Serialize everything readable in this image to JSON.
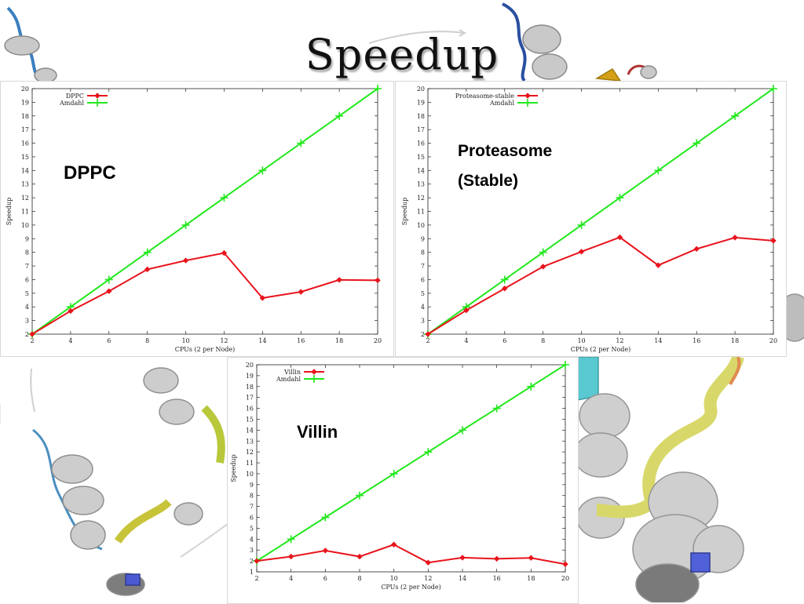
{
  "slide": {
    "title": "Speedup"
  },
  "chart_data": [
    {
      "id": "dppc",
      "type": "line",
      "overlay_label": [
        "DPPC"
      ],
      "xlabel": "CPUs (2 per Node)",
      "ylabel": "Speedup",
      "xlim": [
        2,
        20
      ],
      "ylim": [
        2,
        20
      ],
      "x_ticks": [
        2,
        4,
        6,
        8,
        10,
        12,
        14,
        16,
        18,
        20
      ],
      "y_ticks": [
        2,
        3,
        4,
        5,
        6,
        7,
        8,
        9,
        10,
        11,
        12,
        13,
        14,
        15,
        16,
        17,
        18,
        19,
        20
      ],
      "legend_position": "top-left",
      "grid": false,
      "x": [
        2,
        4,
        6,
        8,
        10,
        12,
        14,
        16,
        18,
        20
      ],
      "series": [
        {
          "name": "DPPC",
          "color": "#e8141c",
          "marker": "diamond",
          "values": [
            2.0,
            3.7,
            5.15,
            6.75,
            7.4,
            7.95,
            4.65,
            5.1,
            5.98,
            5.95
          ]
        },
        {
          "name": "Amdahl",
          "color": "#22e81c",
          "marker": "plus",
          "values": [
            2,
            4,
            6,
            8,
            10,
            12,
            14,
            16,
            18,
            20
          ]
        }
      ]
    },
    {
      "id": "proteasome",
      "type": "line",
      "overlay_label": [
        "Proteasome",
        "(Stable)"
      ],
      "xlabel": "CPUs (2 per Node)",
      "ylabel": "Speedup",
      "xlim": [
        2,
        20
      ],
      "ylim": [
        2,
        20
      ],
      "x_ticks": [
        2,
        4,
        6,
        8,
        10,
        12,
        14,
        16,
        18,
        20
      ],
      "y_ticks": [
        2,
        3,
        4,
        5,
        6,
        7,
        8,
        9,
        10,
        11,
        12,
        13,
        14,
        15,
        16,
        17,
        18,
        19,
        20
      ],
      "legend_position": "top-left",
      "grid": false,
      "x": [
        2,
        4,
        6,
        8,
        10,
        12,
        14,
        16,
        18,
        20
      ],
      "series": [
        {
          "name": "Proteasome-stable",
          "color": "#e8141c",
          "marker": "diamond",
          "values": [
            2.0,
            3.75,
            5.35,
            6.95,
            8.05,
            9.1,
            7.05,
            8.25,
            9.08,
            8.85
          ]
        },
        {
          "name": "Amdahl",
          "color": "#22e81c",
          "marker": "plus",
          "values": [
            2,
            4,
            6,
            8,
            10,
            12,
            14,
            16,
            18,
            20
          ]
        }
      ]
    },
    {
      "id": "villin",
      "type": "line",
      "overlay_label": [
        "Villin"
      ],
      "xlabel": "CPUs (2 per Node)",
      "ylabel": "Speedup",
      "xlim": [
        2,
        20
      ],
      "ylim": [
        1,
        20
      ],
      "x_ticks": [
        2,
        4,
        6,
        8,
        10,
        12,
        14,
        16,
        18,
        20
      ],
      "y_ticks": [
        1,
        2,
        3,
        4,
        5,
        6,
        7,
        8,
        9,
        10,
        11,
        12,
        13,
        14,
        15,
        16,
        17,
        18,
        19,
        20
      ],
      "legend_position": "top-left",
      "grid": false,
      "x": [
        2,
        4,
        6,
        8,
        10,
        12,
        14,
        16,
        18,
        20
      ],
      "series": [
        {
          "name": "Villin",
          "color": "#e8141c",
          "marker": "diamond",
          "values": [
            2.0,
            2.4,
            2.95,
            2.4,
            3.5,
            1.85,
            2.3,
            2.2,
            2.28,
            1.7
          ]
        },
        {
          "name": "Amdahl",
          "color": "#22e81c",
          "marker": "plus",
          "values": [
            2,
            4,
            6,
            8,
            10,
            12,
            14,
            16,
            18,
            20
          ]
        }
      ]
    }
  ]
}
